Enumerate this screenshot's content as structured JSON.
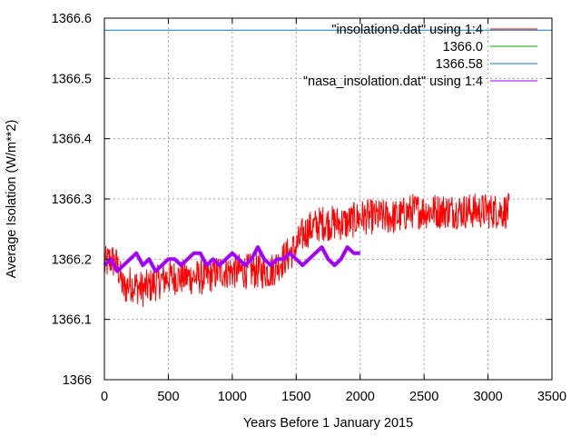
{
  "chart_data": {
    "type": "line",
    "title": "",
    "xlabel": "Years Before 1 January 2015",
    "ylabel": "Average Isolation (W/m**2)",
    "xlim": [
      0,
      3500
    ],
    "ylim": [
      1366.0,
      1366.6
    ],
    "xticks": [
      0,
      500,
      1000,
      1500,
      2000,
      2500,
      3000,
      3500
    ],
    "yticks": [
      1366,
      1366.1,
      1366.2,
      1366.3,
      1366.4,
      1366.5,
      1366.6
    ],
    "ytick_labels": [
      "1366",
      "1366.1",
      "1366.2",
      "1366.3",
      "1366.4",
      "1366.5",
      "1366.6"
    ],
    "grid": true,
    "legend_position": "top-right",
    "series": [
      {
        "name": "\"insolation9.dat\" using 1:4",
        "color": "#ff0000",
        "style": "noisy-line",
        "x": [
          0,
          50,
          100,
          150,
          200,
          300,
          400,
          500,
          600,
          700,
          800,
          900,
          1000,
          1100,
          1200,
          1300,
          1400,
          1500,
          1550,
          1600,
          1700,
          1800,
          1900,
          2000,
          2100,
          2200,
          2300,
          2400,
          2500,
          2600,
          2700,
          2800,
          2900,
          3000,
          3100,
          3165
        ],
        "y": [
          1366.19,
          1366.2,
          1366.19,
          1366.15,
          1366.16,
          1366.15,
          1366.16,
          1366.17,
          1366.17,
          1366.17,
          1366.17,
          1366.18,
          1366.18,
          1366.18,
          1366.18,
          1366.18,
          1366.2,
          1366.22,
          1366.24,
          1366.25,
          1366.26,
          1366.26,
          1366.26,
          1366.27,
          1366.27,
          1366.27,
          1366.27,
          1366.28,
          1366.28,
          1366.28,
          1366.28,
          1366.28,
          1366.28,
          1366.28,
          1366.28,
          1366.28
        ],
        "noise_amplitude": 0.03
      },
      {
        "name": "1366.0",
        "color": "#00a000",
        "style": "constant",
        "value": 1366.0
      },
      {
        "name": "1366.58",
        "color": "#0080c0",
        "style": "constant",
        "value": 1366.58
      },
      {
        "name": "\"nasa_insolation.dat\" using 1:4",
        "color": "#a000ff",
        "style": "thick-line",
        "x": [
          0,
          50,
          100,
          150,
          200,
          250,
          300,
          350,
          400,
          450,
          500,
          550,
          600,
          650,
          700,
          750,
          800,
          850,
          900,
          950,
          1000,
          1050,
          1100,
          1150,
          1200,
          1250,
          1300,
          1350,
          1400,
          1450,
          1500,
          1550,
          1600,
          1650,
          1700,
          1750,
          1800,
          1850,
          1900,
          1950,
          2000
        ],
        "y": [
          1366.19,
          1366.2,
          1366.18,
          1366.19,
          1366.2,
          1366.21,
          1366.19,
          1366.2,
          1366.18,
          1366.19,
          1366.2,
          1366.2,
          1366.19,
          1366.2,
          1366.21,
          1366.21,
          1366.19,
          1366.2,
          1366.19,
          1366.2,
          1366.21,
          1366.2,
          1366.19,
          1366.2,
          1366.22,
          1366.2,
          1366.19,
          1366.2,
          1366.2,
          1366.21,
          1366.2,
          1366.19,
          1366.2,
          1366.21,
          1366.22,
          1366.2,
          1366.19,
          1366.2,
          1366.22,
          1366.21,
          1366.21
        ]
      }
    ]
  }
}
